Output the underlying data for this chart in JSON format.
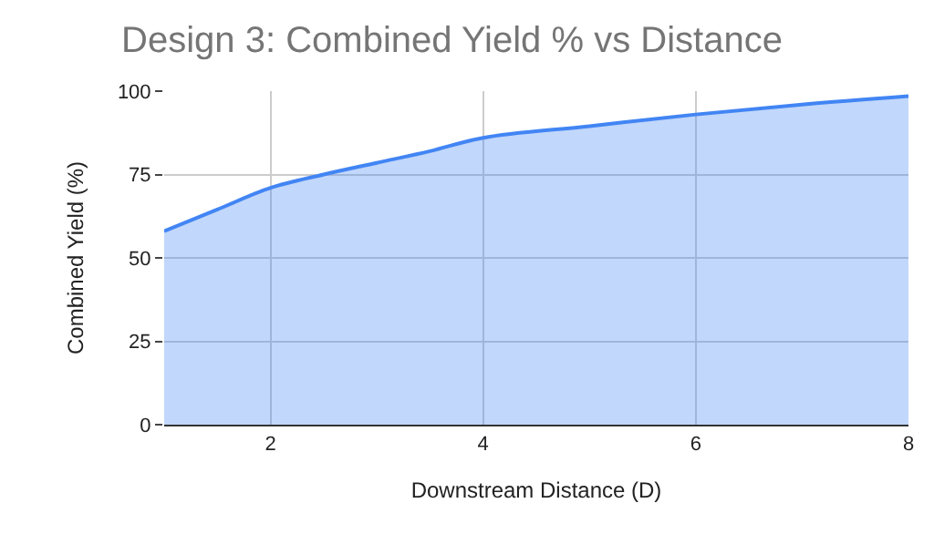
{
  "chart_data": {
    "type": "area",
    "title": "Design 3: Combined Yield % vs Distance",
    "xlabel": "Downstream Distance (D)",
    "ylabel": "Combined Yield (%)",
    "x": [
      1,
      1.5,
      2,
      2.5,
      3,
      3.5,
      4,
      5,
      6,
      7,
      8
    ],
    "series": [
      {
        "color": "#4285f4",
        "values": [
          58,
          64.5,
          71,
          75,
          78.5,
          82,
          86,
          89.5,
          93,
          96,
          98.5
        ]
      }
    ],
    "xlim": [
      1,
      8
    ],
    "xticks": [
      2,
      4,
      6,
      8
    ],
    "ylim": [
      0,
      100
    ],
    "yticks": [
      0,
      25,
      50,
      75,
      100
    ],
    "grid": true
  }
}
